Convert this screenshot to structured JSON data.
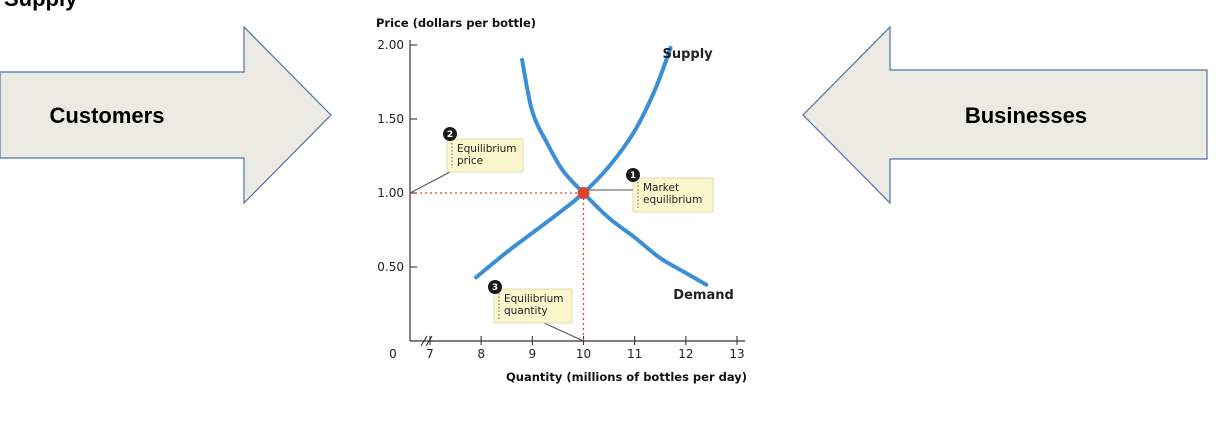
{
  "header_fragment": "Supply",
  "arrows": {
    "left": {
      "label": "Customers"
    },
    "right": {
      "label": "Businesses"
    }
  },
  "colors": {
    "arrow_fill": "#ebebe3",
    "arrow_stroke": "#4f72a8",
    "curve": "#3a8fd6",
    "equilibrium_marker": "#e0412a",
    "equilibrium_labels": "#e0412a",
    "callout_fill": "#fbf6cc",
    "badge": "#1a1a1a"
  },
  "chart_data": {
    "type": "line",
    "xlabel": "Quantity (millions of bottles per day)",
    "ylabel": "Price (dollars per bottle)",
    "xlim": [
      7,
      13
    ],
    "ylim": [
      0,
      2.0
    ],
    "x_origin_label": "0",
    "x_axis_break": true,
    "x_ticks": [
      7,
      8,
      9,
      10,
      11,
      12,
      13
    ],
    "x_tick_labels": [
      "7",
      "8",
      "9",
      "10",
      "11",
      "12",
      "13"
    ],
    "y_ticks": [
      0.5,
      1.0,
      1.5,
      2.0
    ],
    "y_tick_labels": [
      "0.50",
      "1.00",
      "1.50",
      "2.00"
    ],
    "series": [
      {
        "name": "Supply",
        "x": [
          7.9,
          8.5,
          9.0,
          9.5,
          10.0,
          10.5,
          11.0,
          11.4,
          11.7
        ],
        "y": [
          0.43,
          0.6,
          0.73,
          0.86,
          1.0,
          1.18,
          1.42,
          1.7,
          1.98
        ]
      },
      {
        "name": "Demand",
        "x": [
          8.8,
          9.0,
          9.3,
          9.6,
          10.0,
          10.5,
          11.0,
          11.5,
          12.0,
          12.4
        ],
        "y": [
          1.9,
          1.55,
          1.33,
          1.15,
          1.0,
          0.83,
          0.7,
          0.56,
          0.46,
          0.38
        ]
      }
    ],
    "equilibrium": {
      "x": 10,
      "y": 1.0,
      "price_label": "1.00",
      "quantity_label": "10"
    },
    "annotations": [
      {
        "id": "1",
        "text": [
          "Market",
          "equilibrium"
        ]
      },
      {
        "id": "2",
        "text": [
          "Equilibrium",
          "price"
        ]
      },
      {
        "id": "3",
        "text": [
          "Equilibrium",
          "quantity"
        ]
      }
    ]
  }
}
